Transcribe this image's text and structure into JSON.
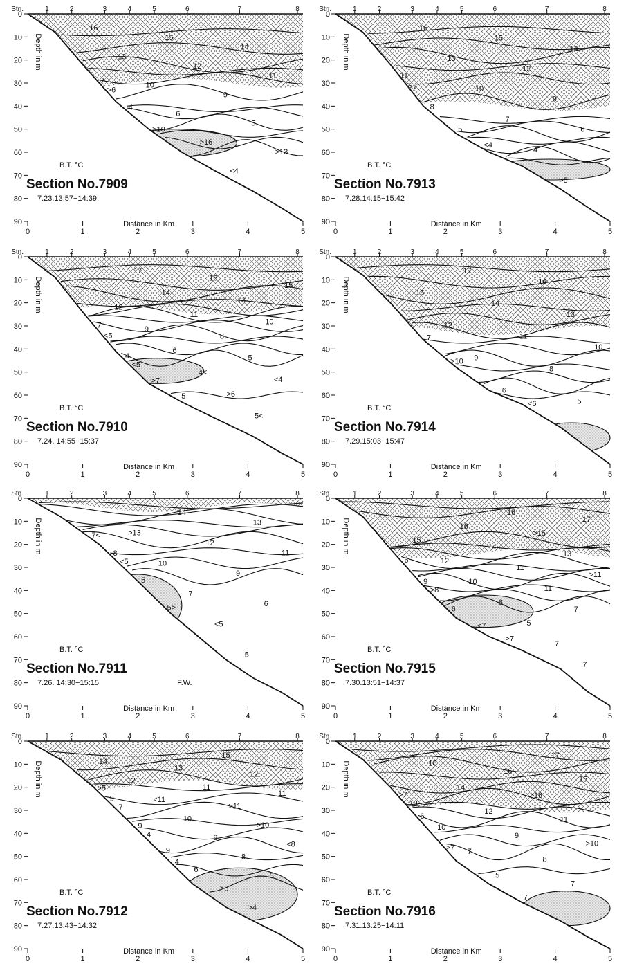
{
  "figure": {
    "stn_label": "Stn.",
    "depth_label": "Depth in m",
    "distance_label": "Distance in Km",
    "bt_label": "B.T. °C"
  },
  "chart_data": [
    {
      "type": "contour",
      "title": "Section No.7909",
      "time": "7.23.13:57−14:39",
      "xlabel": "Distance in Km",
      "ylabel": "Depth in m",
      "xlim": [
        0,
        5
      ],
      "ylim": [
        90,
        0
      ],
      "x_ticks": [
        "0",
        "1",
        "2",
        "3",
        "4",
        "5"
      ],
      "y_ticks": [
        "0",
        "10",
        "20",
        "30",
        "40",
        "50",
        "60",
        "70",
        "80",
        "90"
      ],
      "stations": [
        {
          "label": "1",
          "km": 0.35
        },
        {
          "label": "2",
          "km": 0.8
        },
        {
          "label": "3",
          "km": 1.4
        },
        {
          "label": "4",
          "km": 1.85
        },
        {
          "label": "5",
          "km": 2.3
        },
        {
          "label": "6",
          "km": 2.9
        },
        {
          "label": "7",
          "km": 3.85
        },
        {
          "label": "8",
          "km": 4.9
        }
      ],
      "bottom_profile": [
        [
          0,
          0
        ],
        [
          0.5,
          8
        ],
        [
          1,
          22
        ],
        [
          1.6,
          38
        ],
        [
          2.2,
          50
        ],
        [
          2.8,
          60
        ],
        [
          3.4,
          68
        ],
        [
          4.1,
          77
        ],
        [
          4.6,
          84
        ],
        [
          5,
          90
        ]
      ],
      "warm_layer": {
        "top": 0,
        "bottom": 30
      },
      "cold_core": {
        "label": "<4",
        "temp_max": 4
      },
      "isotherm_labels": [
        "16",
        "15",
        "14",
        "13",
        "12",
        "11",
        "10",
        "9",
        "7",
        "6",
        "5",
        "4",
        ">16",
        ">13",
        ">10",
        "<4",
        ">6"
      ],
      "isotherm_depths": [
        8,
        15,
        22,
        25,
        28,
        34,
        41,
        43,
        47,
        52,
        56,
        58
      ],
      "cold_core_span": [
        1.6,
        3.8,
        50,
        62
      ]
    },
    {
      "type": "contour",
      "title": "Section No.7913",
      "time": "7.28.14:15−15:42",
      "xlabel": "Distance in Km",
      "ylabel": "Depth in m",
      "xlim": [
        0,
        5
      ],
      "ylim": [
        90,
        0
      ],
      "x_ticks": [
        "0",
        "1",
        "2",
        "3",
        "4",
        "5"
      ],
      "y_ticks": [
        "0",
        "10",
        "20",
        "30",
        "40",
        "50",
        "60",
        "70",
        "80",
        "90"
      ],
      "stations": [
        {
          "label": "1",
          "km": 0.35
        },
        {
          "label": "2",
          "km": 0.8
        },
        {
          "label": "3",
          "km": 1.4
        },
        {
          "label": "4",
          "km": 1.85
        },
        {
          "label": "5",
          "km": 2.3
        },
        {
          "label": "6",
          "km": 2.9
        },
        {
          "label": "7",
          "km": 3.85
        },
        {
          "label": "8",
          "km": 4.9
        }
      ],
      "bottom_profile": [
        [
          0,
          0
        ],
        [
          0.5,
          8
        ],
        [
          1,
          22
        ],
        [
          1.6,
          40
        ],
        [
          2.2,
          52
        ],
        [
          2.8,
          60
        ],
        [
          3.4,
          66
        ],
        [
          4.1,
          76
        ],
        [
          4.6,
          84
        ],
        [
          5,
          90
        ]
      ],
      "warm_layer": {
        "top": 0,
        "bottom": 40
      },
      "cold_core": {
        "label": "<4",
        "temp_max": 4
      },
      "isotherm_labels": [
        "16",
        "15",
        "14",
        "13",
        "12",
        "11",
        "10",
        "9",
        "8",
        "7",
        "6",
        "5",
        "4",
        ">7",
        "<4",
        ">5"
      ],
      "isotherm_depths": [
        7,
        13,
        18,
        23,
        28,
        38,
        46,
        49,
        52,
        55,
        58,
        61,
        64
      ],
      "cold_core_span": [
        2.8,
        5,
        63,
        72
      ]
    },
    {
      "type": "contour",
      "title": "Section No.7910",
      "time": "7.24. 14:55−15:37",
      "xlabel": "Distance in Km",
      "ylabel": "Depth in m",
      "xlim": [
        0,
        5
      ],
      "ylim": [
        90,
        0
      ],
      "x_ticks": [
        "0",
        "1",
        "2",
        "3",
        "4",
        "5"
      ],
      "y_ticks": [
        "0",
        "10",
        "20",
        "30",
        "40",
        "50",
        "60",
        "70",
        "80",
        "90"
      ],
      "stations": [
        {
          "label": "1",
          "km": 0.35
        },
        {
          "label": "2",
          "km": 0.8
        },
        {
          "label": "3",
          "km": 1.4
        },
        {
          "label": "4",
          "km": 1.85
        },
        {
          "label": "5",
          "km": 2.3
        },
        {
          "label": "6",
          "km": 2.9
        },
        {
          "label": "7",
          "km": 3.85
        },
        {
          "label": "8",
          "km": 4.9
        }
      ],
      "bottom_profile": [
        [
          0,
          0
        ],
        [
          0.5,
          9
        ],
        [
          1,
          24
        ],
        [
          1.6,
          41
        ],
        [
          2.2,
          55
        ],
        [
          2.8,
          63
        ],
        [
          3.4,
          70
        ],
        [
          4.1,
          78
        ],
        [
          4.6,
          85
        ],
        [
          5,
          90
        ]
      ],
      "warm_layer": {
        "top": 0,
        "bottom": 23
      },
      "cold_core": {
        "label": "<4",
        "temp_max": 4
      },
      "isotherm_labels": [
        "17",
        "16",
        "15",
        "14",
        "13",
        "12",
        "11",
        "10",
        "9",
        "8",
        "7",
        "6",
        "5",
        "4",
        "4<",
        "<4",
        ">7",
        ">6",
        "<5",
        "5",
        "5<",
        "<5"
      ],
      "isotherm_depths": [
        5,
        12,
        16,
        20,
        23,
        25,
        27,
        30,
        33,
        36,
        40,
        44,
        60
      ],
      "cold_core_span": [
        1.5,
        3.2,
        44,
        55
      ]
    },
    {
      "type": "contour",
      "title": "Section No.7914",
      "time": "7.29.15:03−15:47",
      "xlabel": "Distance in Km",
      "ylabel": "Depth in m",
      "xlim": [
        0,
        5
      ],
      "ylim": [
        90,
        0
      ],
      "x_ticks": [
        "0",
        "1",
        "2",
        "3",
        "4",
        "5"
      ],
      "y_ticks": [
        "0",
        "10",
        "20",
        "30",
        "40",
        "50",
        "60",
        "70",
        "80",
        "90"
      ],
      "stations": [
        {
          "label": "1",
          "km": 0.35
        },
        {
          "label": "2",
          "km": 0.8
        },
        {
          "label": "3",
          "km": 1.4
        },
        {
          "label": "4",
          "km": 1.85
        },
        {
          "label": "5",
          "km": 2.3
        },
        {
          "label": "6",
          "km": 2.9
        },
        {
          "label": "7",
          "km": 3.85
        },
        {
          "label": "8",
          "km": 4.9
        }
      ],
      "bottom_profile": [
        [
          0,
          0
        ],
        [
          0.5,
          8
        ],
        [
          1,
          20
        ],
        [
          1.6,
          36
        ],
        [
          2.2,
          48
        ],
        [
          2.8,
          58
        ],
        [
          3.4,
          64
        ],
        [
          4.1,
          74
        ],
        [
          4.6,
          83
        ],
        [
          5,
          90
        ]
      ],
      "warm_layer": {
        "top": 0,
        "bottom": 32
      },
      "cold_core": {
        "label": "<6",
        "temp_max": 6
      },
      "isotherm_labels": [
        "17",
        "16",
        "15",
        "14",
        "13",
        "12",
        "11",
        "10",
        "9",
        "8",
        "7",
        "6",
        "5",
        ">10",
        "<6"
      ],
      "isotherm_depths": [
        5,
        11,
        17,
        22,
        27,
        32,
        36,
        40,
        44,
        48,
        52,
        56,
        60
      ],
      "cold_core_span": [
        3.6,
        5,
        72,
        85
      ]
    },
    {
      "type": "contour",
      "title": "Section No.7911",
      "time": "7.26. 14:30−15:15",
      "note": "F.W.",
      "xlabel": "Distance in Km",
      "ylabel": "Depth in m",
      "xlim": [
        0,
        5
      ],
      "ylim": [
        90,
        0
      ],
      "x_ticks": [
        "0",
        "1",
        "2",
        "3",
        "4",
        "5"
      ],
      "y_ticks": [
        "0",
        "10",
        "20",
        "30",
        "40",
        "50",
        "60",
        "70",
        "80",
        "90"
      ],
      "stations": [
        {
          "label": "1",
          "km": 0.35
        },
        {
          "label": "2",
          "km": 0.8
        },
        {
          "label": "3",
          "km": 1.4
        },
        {
          "label": "4",
          "km": 1.85
        },
        {
          "label": "5",
          "km": 2.3
        },
        {
          "label": "6",
          "km": 2.9
        },
        {
          "label": "7",
          "km": 3.85
        },
        {
          "label": "8",
          "km": 4.9
        }
      ],
      "bottom_profile": [
        [
          0,
          0
        ],
        [
          0.6,
          8
        ],
        [
          1.3,
          20
        ],
        [
          2,
          36
        ],
        [
          2.6,
          50
        ],
        [
          3.1,
          60
        ],
        [
          3.6,
          70
        ],
        [
          4.1,
          78
        ],
        [
          4.6,
          84
        ],
        [
          5,
          90
        ]
      ],
      "warm_layer": {
        "top": 0,
        "bottom": 4
      },
      "cold_core": {
        "label": "<5",
        "temp_max": 5
      },
      "isotherm_labels": [
        "14",
        "13",
        ">13",
        "12",
        "11",
        "10",
        "9",
        "8",
        "7",
        "6",
        "5",
        "<5",
        "7<",
        "5>",
        "5",
        "<5"
      ],
      "isotherm_depths": [
        3,
        5,
        8,
        11,
        14,
        18,
        23,
        28,
        34
      ],
      "cold_core_span": [
        1.2,
        2.8,
        33,
        60
      ]
    },
    {
      "type": "contour",
      "title": "Section No.7915",
      "time": "7.30.13:51−14:37",
      "xlabel": "Distance in Km",
      "ylabel": "Depth in m",
      "xlim": [
        0,
        5
      ],
      "ylim": [
        90,
        0
      ],
      "x_ticks": [
        "0",
        "1",
        "2",
        "3",
        "4",
        "5"
      ],
      "y_ticks": [
        "0",
        "10",
        "20",
        "30",
        "40",
        "50",
        "60",
        "70",
        "80",
        "90"
      ],
      "stations": [
        {
          "label": "1",
          "km": 0.35
        },
        {
          "label": "2",
          "km": 0.8
        },
        {
          "label": "3",
          "km": 1.4
        },
        {
          "label": "4",
          "km": 1.85
        },
        {
          "label": "5",
          "km": 2.3
        },
        {
          "label": "6",
          "km": 2.9
        },
        {
          "label": "7",
          "km": 3.85
        },
        {
          "label": "8",
          "km": 4.9
        }
      ],
      "bottom_profile": [
        [
          0,
          0
        ],
        [
          0.5,
          8
        ],
        [
          1,
          22
        ],
        [
          1.6,
          38
        ],
        [
          2.2,
          52
        ],
        [
          2.8,
          60
        ],
        [
          3.4,
          66
        ],
        [
          4.1,
          74
        ],
        [
          4.6,
          84
        ],
        [
          5,
          90
        ]
      ],
      "warm_layer": {
        "top": 0,
        "bottom": 24
      },
      "cold_core": {
        "label": "<7",
        "temp_max": 7
      },
      "isotherm_labels": [
        "16",
        "17",
        "16",
        ">15",
        "15",
        "14",
        "13",
        "12",
        "11",
        ">11",
        "10",
        "11",
        "9",
        "8",
        "7",
        "6",
        "5",
        "6",
        "<7",
        "7",
        ">8",
        ">7",
        "7"
      ],
      "isotherm_depths": [
        3,
        6,
        18,
        21,
        24,
        27,
        30,
        33,
        36,
        39,
        42,
        46
      ],
      "cold_core_span": [
        1.8,
        3.6,
        42,
        56
      ]
    },
    {
      "type": "contour",
      "title": "Section No.7912",
      "time": "7.27.13:43−14:32",
      "xlabel": "Distance in Km",
      "ylabel": "Depth in m",
      "xlim": [
        0,
        5
      ],
      "ylim": [
        90,
        0
      ],
      "x_ticks": [
        "0",
        "1",
        "2",
        "3",
        "4",
        "5"
      ],
      "y_ticks": [
        "0",
        "10",
        "20",
        "30",
        "40",
        "50",
        "60",
        "70",
        "80",
        "90"
      ],
      "stations": [
        {
          "label": "1",
          "km": 0.35
        },
        {
          "label": "2",
          "km": 0.8
        },
        {
          "label": "3",
          "km": 1.4
        },
        {
          "label": "4",
          "km": 1.85
        },
        {
          "label": "5",
          "km": 2.3
        },
        {
          "label": "6",
          "km": 2.9
        },
        {
          "label": "7",
          "km": 3.85
        },
        {
          "label": "8",
          "km": 4.9
        }
      ],
      "bottom_profile": [
        [
          0,
          0
        ],
        [
          0.6,
          8
        ],
        [
          1.2,
          20
        ],
        [
          1.8,
          34
        ],
        [
          2.4,
          48
        ],
        [
          3,
          62
        ],
        [
          3.6,
          72
        ],
        [
          4.1,
          78
        ],
        [
          4.6,
          84
        ],
        [
          5,
          90
        ]
      ],
      "warm_layer": {
        "top": 0,
        "bottom": 19
      },
      "cold_core": {
        "label": "4",
        "temp_max": 4
      },
      "isotherm_labels": [
        "15",
        "14",
        "13",
        "12",
        "12",
        "11",
        "11",
        "<11",
        ">11",
        "9",
        "10",
        ">10",
        "9",
        "8",
        "<8",
        "9",
        "8",
        "7",
        "6",
        "5",
        "4",
        ">5",
        ">5",
        "4",
        ">4"
      ],
      "isotherm_depths": [
        5,
        10,
        16,
        20,
        25,
        30,
        35,
        40,
        45,
        50,
        56,
        62
      ],
      "cold_core_span": [
        2.8,
        4.9,
        55,
        78
      ]
    },
    {
      "type": "contour",
      "title": "Section No.7916",
      "time": "7.31.13:25−14:11",
      "xlabel": "Distance in Km",
      "ylabel": "Depth in m",
      "xlim": [
        0,
        5
      ],
      "ylim": [
        90,
        0
      ],
      "x_ticks": [
        "0",
        "1",
        "2",
        "3",
        "4",
        "5"
      ],
      "y_ticks": [
        "0",
        "10",
        "20",
        "30",
        "40",
        "50",
        "60",
        "70",
        "80",
        "90"
      ],
      "stations": [
        {
          "label": "1",
          "km": 0.35
        },
        {
          "label": "2",
          "km": 0.8
        },
        {
          "label": "3",
          "km": 1.4
        },
        {
          "label": "4",
          "km": 1.85
        },
        {
          "label": "5",
          "km": 2.3
        },
        {
          "label": "6",
          "km": 2.9
        },
        {
          "label": "7",
          "km": 3.85
        },
        {
          "label": "8",
          "km": 4.9
        }
      ],
      "bottom_profile": [
        [
          0,
          0
        ],
        [
          0.5,
          8
        ],
        [
          1,
          20
        ],
        [
          1.6,
          36
        ],
        [
          2.2,
          52
        ],
        [
          2.8,
          62
        ],
        [
          3.4,
          70
        ],
        [
          4.1,
          78
        ],
        [
          4.6,
          85
        ],
        [
          5,
          90
        ]
      ],
      "warm_layer": {
        "top": 0,
        "bottom": 29
      },
      "cold_core": {
        "label": ">7",
        "temp_max": 7
      },
      "isotherm_labels": [
        "17",
        "18",
        "16",
        "15",
        "14",
        ">16",
        "13",
        "12",
        "11",
        "10",
        "9",
        ">10",
        "7",
        "8",
        "6",
        "5",
        "7",
        ">7",
        "7",
        ">7"
      ],
      "isotherm_depths": [
        3,
        6,
        10,
        15,
        20,
        24,
        28,
        31,
        34,
        38,
        43,
        48,
        56
      ],
      "cold_core_span": [
        3.4,
        5,
        65,
        80
      ]
    }
  ]
}
